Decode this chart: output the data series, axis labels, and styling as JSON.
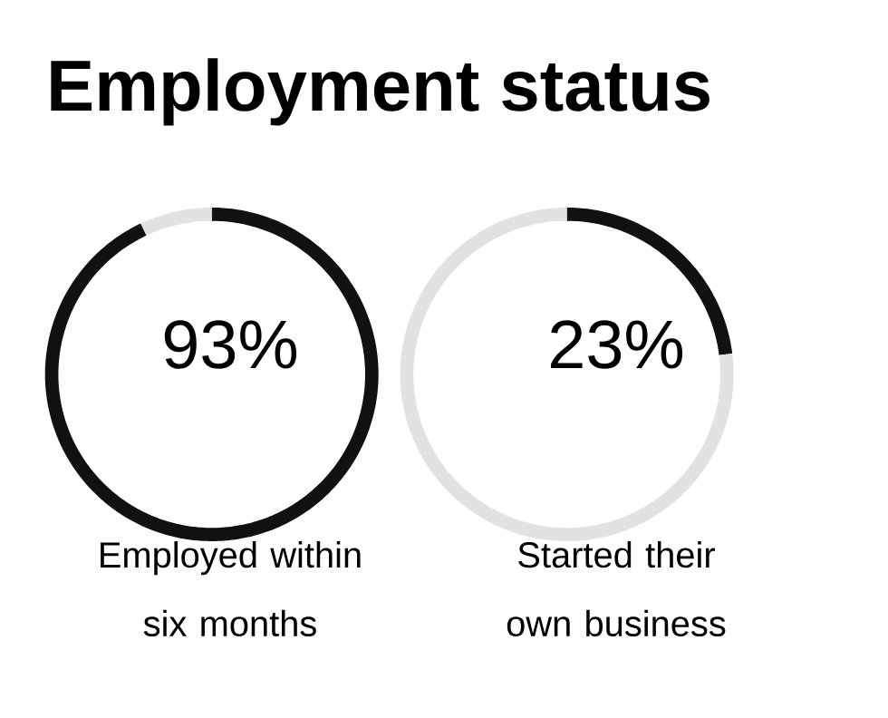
{
  "chart_data": [
    {
      "type": "donut",
      "title": "Employment status",
      "xlabel": "Employed within six months",
      "categories": [
        null,
        null
      ],
      "values": [
        93,
        7
      ],
      "colors": [
        "#111111",
        "#e1e2e4"
      ],
      "value_labels": [
        "93%",
        null
      ]
    },
    {
      "type": "donut",
      "xlabel": "Started their own business",
      "categories": [
        null,
        null
      ],
      "values": [
        23,
        77
      ],
      "colors": [
        "#111111",
        "#e1e2e4"
      ],
      "value_labels": [
        "23%",
        null
      ]
    }
  ]
}
